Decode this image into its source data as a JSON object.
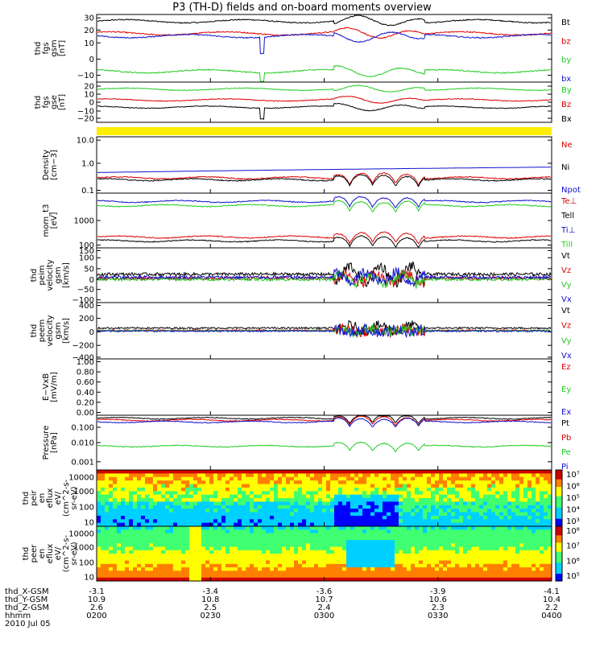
{
  "title": "P3 (TH-D) fields and on-board moments overview",
  "colors": {
    "black": "#000000",
    "red": "#dd0000",
    "green": "#22cc22",
    "blue": "#1010cc",
    "yellow": "#ffee00"
  },
  "footer": {
    "labels": [
      "thd_X-GSM",
      "thd_Y-GSM",
      "thd_Z-GSM",
      "hhmm",
      "2010 Jul 05"
    ],
    "columns": [
      {
        "x": "-3.1",
        "y": "10.9",
        "z": "2.6",
        "t": "0200"
      },
      {
        "x": "-3.4",
        "y": "10.8",
        "z": "2.5",
        "t": "0230"
      },
      {
        "x": "-3.6",
        "y": "10.7",
        "z": "2.4",
        "t": "0300"
      },
      {
        "x": "-3.9",
        "y": "10.6",
        "z": "2.3",
        "t": "0330"
      },
      {
        "x": "-4.1",
        "y": "10.4",
        "z": "2.2",
        "t": "0400"
      }
    ]
  },
  "chart_data": [
    {
      "type": "line",
      "panel": "fgs-gsm",
      "ylabel": [
        "thd",
        "fgs",
        "gsm",
        "[nT]"
      ],
      "yticks": [
        "30",
        "20",
        "10",
        "0",
        "−10"
      ],
      "ylim": [
        -20,
        30
      ],
      "series": [
        {
          "name": "Bt",
          "color": "black",
          "base": 25
        },
        {
          "name": "bz",
          "color": "red",
          "base": 16
        },
        {
          "name": "by",
          "color": "green",
          "base": -12
        },
        {
          "name": "bx",
          "color": "blue",
          "base": 14
        }
      ]
    },
    {
      "type": "line",
      "panel": "fgs-gse",
      "ylabel": [
        "thd",
        "fgs",
        "gse",
        "[nT]"
      ],
      "yticks": [
        "20",
        "10",
        "0",
        "−10",
        "−20"
      ],
      "ylim": [
        -25,
        20
      ],
      "series": [
        {
          "name": "By",
          "color": "green",
          "base": 12
        },
        {
          "name": "Bz",
          "color": "red",
          "base": 0
        },
        {
          "name": "Bx",
          "color": "black",
          "base": -8
        }
      ]
    },
    {
      "type": "bar",
      "panel": "flag",
      "color": "yellow"
    },
    {
      "type": "line",
      "panel": "density",
      "ylabel": [
        "Density",
        "[cm−3]"
      ],
      "yticks": [
        "10.0",
        "1.0",
        "0.1"
      ],
      "ylim": [
        0.1,
        10
      ],
      "log": true,
      "series": [
        {
          "name": "Ne",
          "color": "red",
          "base": 0.35
        },
        {
          "name": "Ni",
          "color": "black",
          "base": 0.3
        },
        {
          "name": "Npot",
          "color": "blue",
          "base": 0.6
        }
      ]
    },
    {
      "type": "line",
      "panel": "temperature",
      "ylabel": [
        "mom_t3",
        "[eV]"
      ],
      "yticks": [
        "1000",
        "100"
      ],
      "ylim": [
        100,
        10000
      ],
      "log": true,
      "series": [
        {
          "name": "Te⊥",
          "color": "red",
          "base": 250
        },
        {
          "name": "Tell",
          "color": "black",
          "base": 180
        },
        {
          "name": "Ti⊥",
          "color": "blue",
          "base": 5000
        },
        {
          "name": "Till",
          "color": "green",
          "base": 3500
        }
      ]
    },
    {
      "type": "line",
      "panel": "peim-velocity",
      "ylabel": [
        "thd",
        "peim",
        "velocity",
        "gsm",
        "[km/s]"
      ],
      "yticks": [
        "150",
        "100",
        "50",
        "0",
        "−50",
        "−100"
      ],
      "ylim": [
        -120,
        150
      ],
      "series": [
        {
          "name": "Vt",
          "color": "black",
          "base": 20
        },
        {
          "name": "Vz",
          "color": "red",
          "base": 0
        },
        {
          "name": "Vy",
          "color": "green",
          "base": -5
        },
        {
          "name": "Vx",
          "color": "blue",
          "base": 5
        }
      ]
    },
    {
      "type": "line",
      "panel": "peem-velocity",
      "ylabel": [
        "thd",
        "peem",
        "velocity",
        "gsm",
        "[km/s]"
      ],
      "yticks": [
        "400",
        "200",
        "0",
        "−200",
        "−400"
      ],
      "ylim": [
        -420,
        420
      ],
      "series": [
        {
          "name": "Vt",
          "color": "black",
          "base": 40
        },
        {
          "name": "Vz",
          "color": "red",
          "base": 5
        },
        {
          "name": "Vy",
          "color": "green",
          "base": 0
        },
        {
          "name": "Vx",
          "color": "blue",
          "base": -5
        }
      ]
    },
    {
      "type": "line",
      "panel": "e-vxb",
      "ylabel": [
        "E−VxB",
        "[mV/m]"
      ],
      "yticks": [
        "1.00",
        "0.80",
        "0.60",
        "0.40",
        "0.20",
        "0.00"
      ],
      "ylim": [
        0,
        1
      ],
      "series": [
        {
          "name": "Ez",
          "color": "red"
        },
        {
          "name": "Ey",
          "color": "green"
        },
        {
          "name": "Ex",
          "color": "blue"
        }
      ]
    },
    {
      "type": "line",
      "panel": "pressure",
      "ylabel": [
        "Pressure",
        "[nPa]"
      ],
      "yticks": [
        "0.100",
        "0.010",
        "0.001"
      ],
      "ylim": [
        0.001,
        0.3
      ],
      "log": true,
      "series": [
        {
          "name": "Pt",
          "color": "black",
          "base": 0.22
        },
        {
          "name": "Pb",
          "color": "red",
          "base": 0.18
        },
        {
          "name": "Pe",
          "color": "green",
          "base": 0.012
        },
        {
          "name": "Pi",
          "color": "blue",
          "base": 0.15
        }
      ]
    },
    {
      "type": "heatmap",
      "panel": "peir-spectrogram",
      "ylabel": [
        "thd",
        "peir",
        "en",
        "eflux",
        "eV/",
        "(cm^2-s-",
        "sr-eV)"
      ],
      "yticks": [
        "10000",
        "1000",
        "100",
        "10"
      ],
      "cbticks": [
        "10⁷",
        "10⁶",
        "10⁵",
        "10⁴",
        "10³"
      ]
    },
    {
      "type": "heatmap",
      "panel": "peer-spectrogram",
      "ylabel": [
        "thd",
        "peer",
        "en",
        "eflux",
        "eV/",
        "(cm^2-s-",
        "sr-eV)"
      ],
      "yticks": [
        "10000",
        "1000",
        "100",
        "10"
      ],
      "cbticks": [
        "10⁸",
        "10⁷",
        "10⁶",
        "10⁵"
      ]
    }
  ]
}
